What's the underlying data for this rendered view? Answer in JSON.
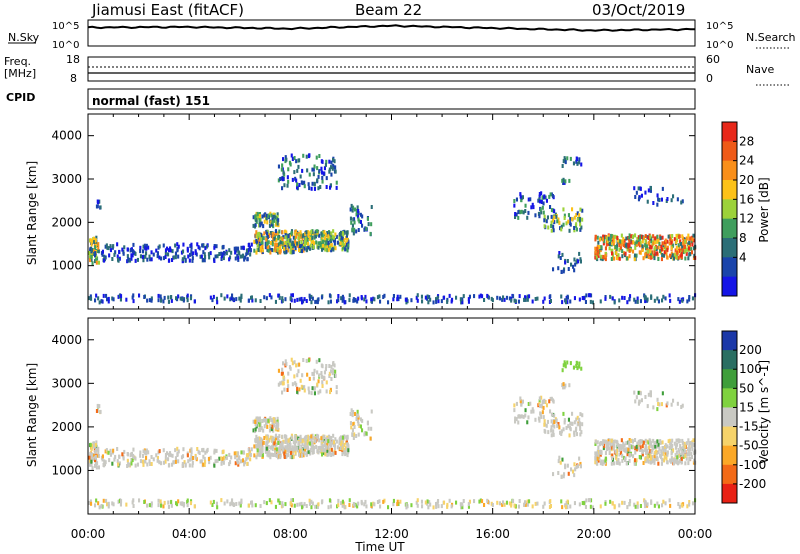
{
  "header": {
    "station": "Jiamusi East (fitACF)",
    "beam": "Beam 22",
    "date": "03/Oct/2019"
  },
  "noise_panel": {
    "left_label": "N.Sky",
    "right_label": "N.Search",
    "left_ticks": [
      "10^5",
      "10^0"
    ],
    "right_ticks": [
      "10^5",
      "10^0"
    ]
  },
  "freq_panel": {
    "left_label_1": "Freq.",
    "left_label_2": "[MHz]",
    "left_ticks": [
      "18",
      "8"
    ],
    "right_label": "Nave",
    "right_ticks": [
      "60",
      "0"
    ]
  },
  "cpid": {
    "label": "CPID",
    "mode": "normal (fast) 151"
  },
  "power_panel": {
    "ylabel": "Slant Range [km]",
    "colorbar_label": "Power [dB]",
    "colorbar_ticks": [
      "28",
      "24",
      "20",
      "16",
      "12",
      "8",
      "4"
    ],
    "colors": [
      "#e8281a",
      "#ef5a18",
      "#f98f1a",
      "#fcc219",
      "#9cd23a",
      "#3f9e5d",
      "#2b6e77",
      "#1a44ab",
      "#1515e6"
    ]
  },
  "velocity_panel": {
    "ylabel": "Slant Range [km]",
    "colorbar_label": "Velocity [m s^-1]",
    "colorbar_ticks": [
      "200",
      "100",
      "50",
      "15",
      "-15",
      "-50",
      "-100",
      "-200"
    ],
    "colors": [
      "#1b38a8",
      "#2a6e62",
      "#3f9e3a",
      "#7fd23f",
      "#c9c9c3",
      "#f6d36a",
      "#fba827",
      "#f36a17",
      "#e82115"
    ]
  },
  "chart_data": [
    {
      "type": "line",
      "title": "N.Sky / N.Search",
      "x": [
        "00:00",
        "04:00",
        "08:00",
        "12:00",
        "16:00",
        "20:00",
        "00:00"
      ],
      "series": [
        {
          "values": [
            3.2,
            3.3,
            3.0,
            3.5,
            3.1,
            2.7,
            2.9
          ]
        }
      ]
    },
    {
      "type": "heatmap",
      "xlabel": "Time UT",
      "ylabel": "Slant Range [km]",
      "x_ticks": [
        "00:00",
        "04:00",
        "08:00",
        "12:00",
        "16:00",
        "20:00",
        "00:00"
      ],
      "y_ticks": [
        "1000",
        "2000",
        "3000",
        "4000"
      ],
      "xlim": [
        0,
        24
      ],
      "ylim": [
        0,
        4500
      ],
      "legend": "right"
    }
  ],
  "axes": {
    "x_ticks": [
      "00:00",
      "04:00",
      "08:00",
      "12:00",
      "16:00",
      "20:00",
      "00:00"
    ],
    "y_ticks": [
      "1000",
      "2000",
      "3000",
      "4000"
    ],
    "xlabel": "Time UT"
  }
}
